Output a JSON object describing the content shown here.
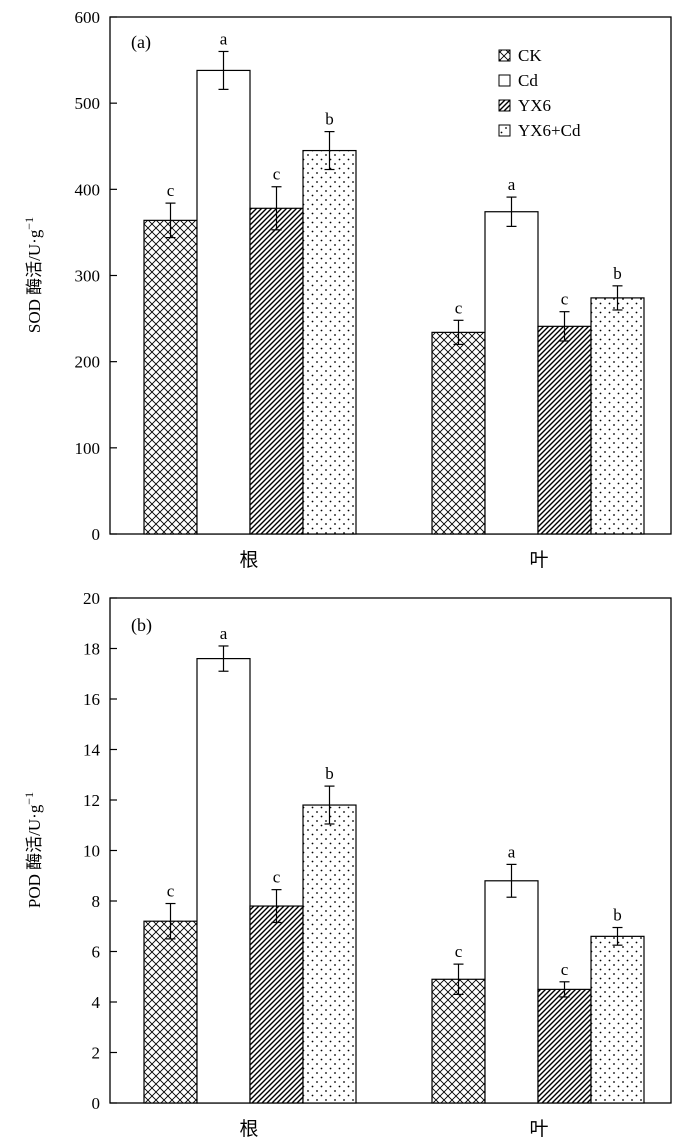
{
  "legend": [
    {
      "label": "CK",
      "pattern": "cross"
    },
    {
      "label": "Cd",
      "pattern": "open"
    },
    {
      "label": "YX6",
      "pattern": "diag"
    },
    {
      "label": "YX6+Cd",
      "pattern": "dots"
    }
  ],
  "chart_data": [
    {
      "type": "bar",
      "panel_tag": "(a)",
      "ylabel_main": "SOD 酶活/U·g",
      "ylabel_sup": "−1",
      "ylim": [
        0,
        600
      ],
      "yticks": [
        "0",
        "100",
        "200",
        "300",
        "400",
        "500",
        "600"
      ],
      "categories": [
        "根",
        "叶"
      ],
      "series": [
        {
          "name": "CK",
          "values": [
            364,
            234
          ],
          "errors": [
            20,
            14
          ],
          "sig": [
            "c",
            "c"
          ]
        },
        {
          "name": "Cd",
          "values": [
            538,
            374
          ],
          "errors": [
            22,
            17
          ],
          "sig": [
            "a",
            "a"
          ]
        },
        {
          "name": "YX6",
          "values": [
            378,
            241
          ],
          "errors": [
            25,
            17
          ],
          "sig": [
            "c",
            "c"
          ]
        },
        {
          "name": "YX6+Cd",
          "values": [
            445,
            274
          ],
          "errors": [
            22,
            14
          ],
          "sig": [
            "b",
            "b"
          ]
        }
      ],
      "legend_position": "top-right",
      "grid": false
    },
    {
      "type": "bar",
      "panel_tag": "(b)",
      "ylabel_main": "POD 酶活/U·g",
      "ylabel_sup": "−1",
      "ylim": [
        0,
        20
      ],
      "yticks": [
        "0",
        "2",
        "4",
        "6",
        "8",
        "10",
        "12",
        "14",
        "16",
        "18",
        "20"
      ],
      "categories": [
        "根",
        "叶"
      ],
      "series": [
        {
          "name": "CK",
          "values": [
            7.2,
            4.9
          ],
          "errors": [
            0.7,
            0.6
          ],
          "sig": [
            "c",
            "c"
          ]
        },
        {
          "name": "Cd",
          "values": [
            17.6,
            8.8
          ],
          "errors": [
            0.5,
            0.65
          ],
          "sig": [
            "a",
            "a"
          ]
        },
        {
          "name": "YX6",
          "values": [
            7.8,
            4.5
          ],
          "errors": [
            0.65,
            0.3
          ],
          "sig": [
            "c",
            "c"
          ]
        },
        {
          "name": "YX6+Cd",
          "values": [
            11.8,
            6.6
          ],
          "errors": [
            0.75,
            0.35
          ],
          "sig": [
            "b",
            "b"
          ]
        }
      ],
      "legend_position": "none",
      "grid": false
    }
  ]
}
